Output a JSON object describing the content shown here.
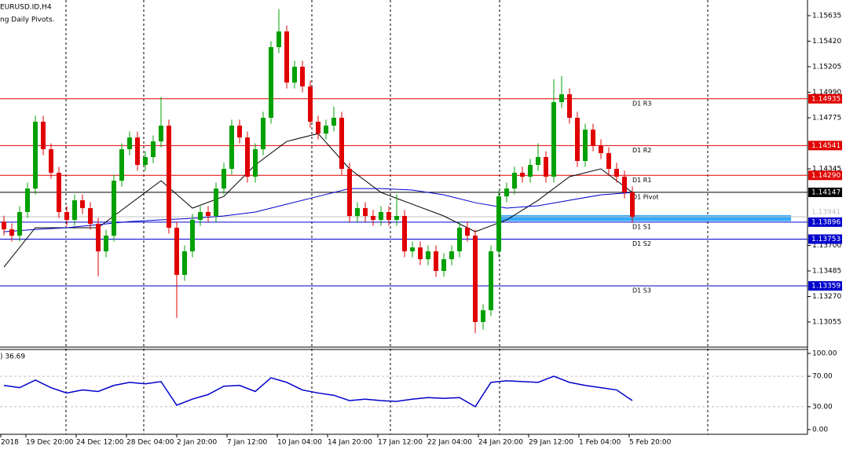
{
  "chart_data": {
    "type": "candlestick",
    "title": "EURUSD.ID,H4",
    "subtitle": "ng Daily Pivots.",
    "up_color": "#00a000",
    "down_color": "#e00000",
    "ylim": [
      1.1285,
      1.15767
    ],
    "yticks": [
      1.15635,
      {
        "value": 1.1542,
        "label": "1.15420"
      },
      1.15205,
      {
        "value": 1.1499,
        "label": "1.14990"
      },
      1.14775,
      1.14345,
      {
        "value": 1.137,
        "label": "1.13700"
      },
      1.13485,
      {
        "value": 1.1327,
        "label": "1.13270"
      },
      1.13055
    ],
    "candles": {
      "open": [
        1.139,
        1.13835,
        1.13782,
        1.13981,
        1.14179,
        1.14742,
        1.1451,
        1.14312,
        1.13981,
        1.13915,
        1.1408,
        1.14014,
        1.13882,
        1.1365,
        1.13782,
        1.14245,
        1.1451,
        1.14609,
        1.14378,
        1.14444,
        1.14576,
        1.14709,
        1.13849,
        1.13452,
        1.1365,
        1.13915,
        1.13981,
        1.13948,
        1.14179,
        1.14345,
        1.14709,
        1.14609,
        1.14279,
        1.1451,
        1.14775,
        1.1537,
        1.15502,
        1.15072,
        1.15205,
        1.15039,
        1.14742,
        1.14642,
        1.14709,
        1.14775,
        1.14345,
        1.13948,
        1.14014,
        1.13948,
        1.13915,
        1.13981,
        1.13915,
        1.13948,
        1.1365,
        1.13683,
        1.13584,
        1.1365,
        1.13485,
        1.13584,
        1.1365,
        1.13849,
        1.13782,
        1.13055,
        1.13154,
        1.1365,
        1.14113,
        1.14179,
        1.14312,
        1.14279,
        1.14378,
        1.14444,
        1.14279,
        1.14907,
        1.14973,
        1.14775,
        1.14411,
        1.14675,
        1.14543,
        1.14477,
        1.14345,
        1.14279,
        1.14146
      ],
      "high": [
        1.1395,
        1.13885,
        1.14031,
        1.14229,
        1.14792,
        1.14792,
        1.1456,
        1.14362,
        1.14031,
        1.1413,
        1.1413,
        1.14064,
        1.13932,
        1.13832,
        1.14295,
        1.1456,
        1.14659,
        1.14659,
        1.14494,
        1.14626,
        1.1495,
        1.14759,
        1.13899,
        1.137,
        1.13965,
        1.14031,
        1.14031,
        1.14229,
        1.14395,
        1.14759,
        1.14759,
        1.14659,
        1.1456,
        1.14825,
        1.1542,
        1.1569,
        1.15552,
        1.15255,
        1.15255,
        1.15089,
        1.14792,
        1.14759,
        1.1487,
        1.14825,
        1.14395,
        1.14064,
        1.14064,
        1.13998,
        1.14031,
        1.14031,
        1.1413,
        1.13998,
        1.13733,
        1.13733,
        1.137,
        1.137,
        1.13634,
        1.137,
        1.13899,
        1.13899,
        1.13832,
        1.13204,
        1.137,
        1.14163,
        1.14229,
        1.14362,
        1.14362,
        1.14428,
        1.1456,
        1.14494,
        1.151,
        1.15125,
        1.15023,
        1.14825,
        1.14725,
        1.14725,
        1.14593,
        1.14527,
        1.14395,
        1.14329,
        1.14196
      ],
      "low": [
        1.13785,
        1.13732,
        1.13732,
        1.13931,
        1.14129,
        1.1446,
        1.14262,
        1.13931,
        1.13865,
        1.13865,
        1.13964,
        1.13832,
        1.1344,
        1.136,
        1.13732,
        1.14195,
        1.1446,
        1.14328,
        1.14328,
        1.14394,
        1.14526,
        1.13799,
        1.1309,
        1.13402,
        1.136,
        1.13865,
        1.13898,
        1.13898,
        1.14129,
        1.14295,
        1.14559,
        1.14229,
        1.14229,
        1.1446,
        1.14725,
        1.1532,
        1.15022,
        1.15022,
        1.14989,
        1.14692,
        1.14592,
        1.14592,
        1.14659,
        1.14295,
        1.13898,
        1.13898,
        1.13898,
        1.13865,
        1.13865,
        1.13865,
        1.13865,
        1.136,
        1.136,
        1.13534,
        1.13534,
        1.13435,
        1.13435,
        1.13534,
        1.136,
        1.13732,
        1.1296,
        1.1299,
        1.13104,
        1.136,
        1.14063,
        1.14129,
        1.14229,
        1.14229,
        1.14328,
        1.14229,
        1.14229,
        1.14857,
        1.14725,
        1.14361,
        1.14361,
        1.14493,
        1.14427,
        1.14295,
        1.14229,
        1.14096,
        1.13891
      ],
      "close": [
        1.13835,
        1.13782,
        1.13981,
        1.14179,
        1.14742,
        1.1451,
        1.14312,
        1.13981,
        1.13915,
        1.1408,
        1.14014,
        1.13882,
        1.1365,
        1.13782,
        1.14245,
        1.1451,
        1.14609,
        1.14378,
        1.14444,
        1.14576,
        1.14709,
        1.13849,
        1.13452,
        1.1365,
        1.13915,
        1.13981,
        1.13948,
        1.14179,
        1.14345,
        1.14709,
        1.14609,
        1.14279,
        1.1451,
        1.14775,
        1.1537,
        1.15502,
        1.15072,
        1.15205,
        1.15039,
        1.14742,
        1.14642,
        1.14709,
        1.14775,
        1.14345,
        1.13948,
        1.14014,
        1.13948,
        1.13915,
        1.13981,
        1.13915,
        1.13948,
        1.1365,
        1.13683,
        1.13584,
        1.1365,
        1.13485,
        1.13584,
        1.1365,
        1.13849,
        1.13782,
        1.13055,
        1.13154,
        1.1365,
        1.14113,
        1.14179,
        1.14312,
        1.14279,
        1.14378,
        1.14444,
        1.14279,
        1.14907,
        1.14973,
        1.14775,
        1.14411,
        1.14675,
        1.14543,
        1.14477,
        1.14345,
        1.14279,
        1.14146,
        1.13941
      ]
    },
    "moving_averages": [
      {
        "color": "#000000",
        "x": [
          0,
          4,
          8,
          12,
          16,
          20,
          24,
          28,
          32,
          36,
          40,
          44,
          48,
          52,
          56,
          60,
          64,
          68,
          72,
          76,
          80
        ],
        "values": [
          1.13518,
          1.13849,
          1.13849,
          1.13849,
          1.14047,
          1.14245,
          1.14014,
          1.14113,
          1.14378,
          1.14576,
          1.14642,
          1.14345,
          1.14146,
          1.14047,
          1.13948,
          1.13815,
          1.13915,
          1.1408,
          1.14279,
          1.14345,
          1.14146
        ]
      },
      {
        "color": "#0000cc",
        "x": [
          0,
          4,
          8,
          12,
          16,
          20,
          24,
          28,
          32,
          36,
          40,
          44,
          48,
          52,
          56,
          60,
          64,
          68,
          72,
          76,
          80
        ],
        "values": [
          1.13815,
          1.13835,
          1.13849,
          1.13875,
          1.13901,
          1.13915,
          1.13928,
          1.13948,
          1.13981,
          1.14047,
          1.14113,
          1.14179,
          1.14179,
          1.14166,
          1.14126,
          1.1406,
          1.14014,
          1.14034,
          1.1408,
          1.14126,
          1.14146
        ]
      }
    ],
    "levels": [
      {
        "name": "D1 R3",
        "value": 1.14935,
        "label": "1.14935",
        "color": "#e00000"
      },
      {
        "name": "D1 R2",
        "value": 1.14541,
        "label": "1.14541",
        "color": "#e00000"
      },
      {
        "name": "D1 R1",
        "value": 1.1429,
        "label": "1.14290",
        "color": "#e00000"
      },
      {
        "name": "D1 Pivot",
        "value": 1.14147,
        "label": "1.14147",
        "color": "#000000"
      },
      {
        "name": "D1 S1",
        "value": 1.13896,
        "label": "1.13896",
        "color": "#0000cc"
      },
      {
        "name": "D1 S2",
        "value": 1.13753,
        "label": "1.13753",
        "color": "#0000cc"
      },
      {
        "name": "D1 S3",
        "value": 1.13359,
        "label": "1.13359",
        "color": "#0000cc"
      }
    ],
    "zone": {
      "from": 1.13955,
      "to": 1.13905,
      "color": "#33aaff"
    },
    "last_price": {
      "value": 1.13941,
      "label": "1.13941"
    },
    "x_labels": [
      "2018",
      "19 Dec 20:00",
      "24 Dec 12:00",
      "28 Dec 04:00",
      "2 Jan 20:00",
      "7 Jan 12:00",
      "10 Jan 04:00",
      "14 Jan 20:00",
      "17 Jan 12:00",
      "22 Jan 04:00",
      "24 Jan 20:00",
      "29 Jan 12:00",
      "1 Feb 04:00",
      "5 Feb 20:00"
    ],
    "indicator": {
      "label": ") 36.69",
      "color": "#0000cc",
      "ylim": [
        0,
        100
      ],
      "yticks": [
        {
          "value": 100,
          "label": "100.00"
        },
        {
          "value": 70,
          "label": "70.00"
        },
        {
          "value": 30,
          "label": "30.00"
        },
        {
          "value": 0,
          "label": "0.00"
        }
      ],
      "x": [
        0,
        2,
        4,
        6,
        8,
        10,
        12,
        14,
        16,
        18,
        20,
        22,
        24,
        26,
        28,
        30,
        32,
        34,
        36,
        38,
        40,
        42,
        44,
        46,
        48,
        50,
        52,
        54,
        56,
        58,
        60,
        62,
        64,
        66,
        68,
        70,
        72,
        74,
        76,
        78,
        80
      ],
      "values": [
        58,
        55,
        65,
        55,
        48,
        52,
        50,
        58,
        62,
        60,
        63,
        32,
        40,
        46,
        57,
        58,
        50,
        68,
        62,
        52,
        48,
        45,
        38,
        40,
        38,
        37,
        40,
        42,
        41,
        42,
        30,
        62,
        64,
        63,
        62,
        70,
        62,
        58,
        55,
        52,
        38
      ]
    }
  }
}
